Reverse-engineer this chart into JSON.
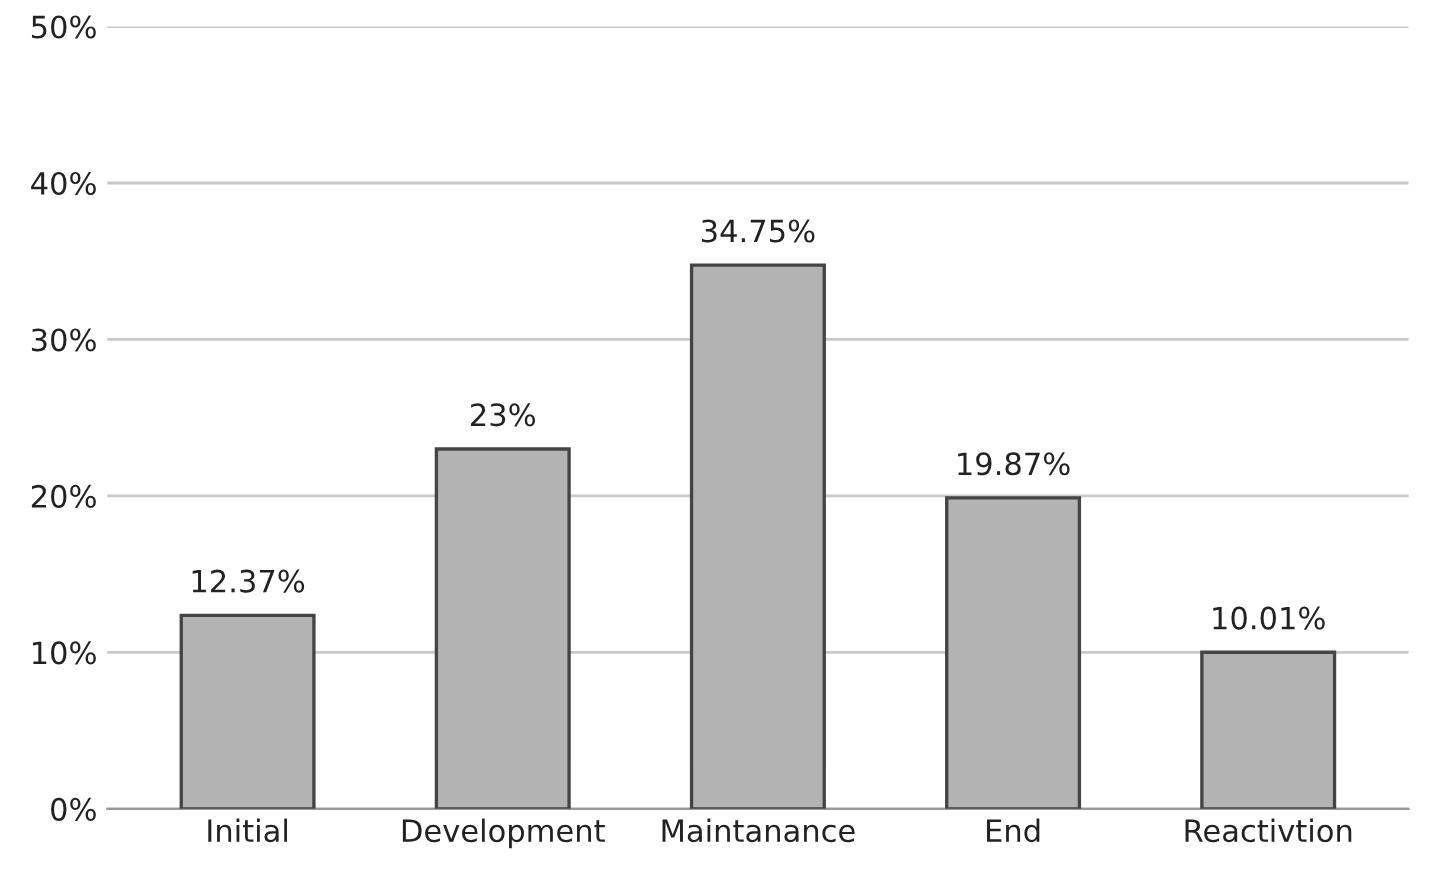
{
  "chart_data": {
    "type": "bar",
    "categories": [
      "Initial",
      "Development",
      "Maintanance",
      "End",
      "Reactivtion"
    ],
    "values": [
      12.37,
      23,
      34.75,
      19.87,
      10.01
    ],
    "value_labels": [
      "12.37%",
      "23%",
      "34.75%",
      "19.87%",
      "10.01%"
    ],
    "color": "#b3b3b3",
    "ylim": [
      0,
      50
    ],
    "yticks": [
      {
        "value": 0,
        "label": "0%"
      },
      {
        "value": 10,
        "label": "10%"
      },
      {
        "value": 20,
        "label": "20%"
      },
      {
        "value": 30,
        "label": "30%"
      },
      {
        "value": 40,
        "label": "40%"
      },
      {
        "value": 50,
        "label": "50%"
      }
    ],
    "grid": "y",
    "legend": false
  }
}
